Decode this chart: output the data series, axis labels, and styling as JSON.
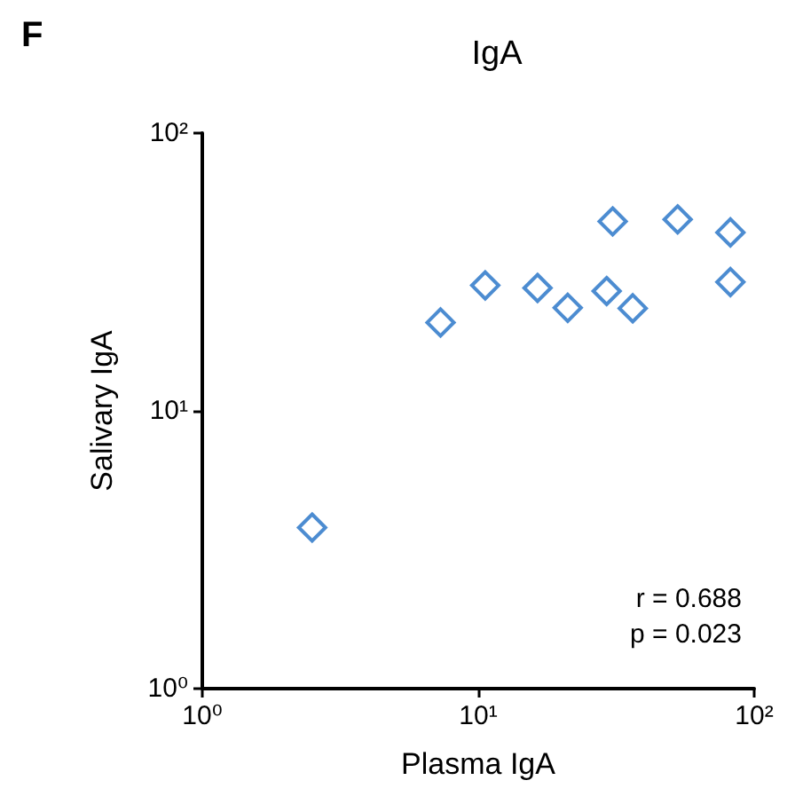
{
  "chart_data": {
    "type": "scatter",
    "title": "IgA",
    "xlabel": "Plasma IgA",
    "ylabel": "Salivary IgA",
    "annotations": [
      "F",
      "r = 0.688",
      "p = 0.023"
    ],
    "x": [
      2.5,
      7.3,
      10.6,
      16.4,
      21.1,
      29.2,
      30.7,
      36.3,
      52.8,
      82,
      82
    ],
    "series": [
      {
        "color": "#1f6fc5",
        "values": [
          3.8,
          20.8,
          28.3,
          27.7,
          23.5,
          27,
          48.1,
          23.4,
          48.9,
          43.9,
          29.1
        ]
      }
    ],
    "log": "xy",
    "marker": "diamond",
    "grid": false,
    "xlim": [
      1,
      100
    ],
    "ylim": [
      1,
      100
    ],
    "xticks": [
      {
        "value": 1,
        "label": "10⁰"
      },
      {
        "value": 10,
        "label": "10¹"
      },
      {
        "value": 100,
        "label": "10²"
      }
    ],
    "yticks": [
      {
        "value": 1,
        "label": "10⁰"
      },
      {
        "value": 10,
        "label": "10¹"
      },
      {
        "value": 100,
        "label": "10²"
      }
    ]
  }
}
